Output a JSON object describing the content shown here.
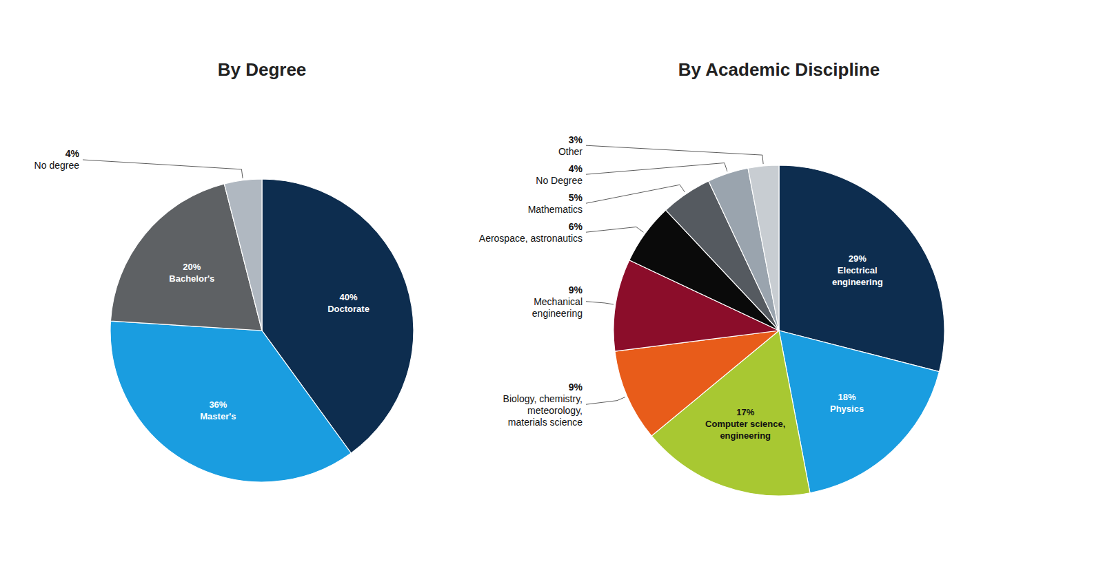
{
  "chart_data": [
    {
      "type": "pie",
      "title": "By Degree",
      "categories": [
        "Doctorate",
        "Master's",
        "Bachelor's",
        "No degree"
      ],
      "values": [
        40,
        36,
        20,
        4
      ],
      "value_labels": [
        "40%",
        "36%",
        "20%",
        "4%"
      ],
      "colors": [
        "#0d2d4f",
        "#1a9de0",
        "#5e6164",
        "#b0b8c1"
      ],
      "data_labels": true
    },
    {
      "type": "pie",
      "title": "By Academic Discipline",
      "categories": [
        "Electrical\nengineering",
        "Physics",
        "Computer science,\nengineering",
        "Biology, chemistry,\nmeteorology,\nmaterials science",
        "Mechanical\nengineering",
        "Aerospace, astronautics",
        "Mathematics",
        "No Degree",
        "Other"
      ],
      "values": [
        29,
        18,
        17,
        9,
        9,
        6,
        5,
        4,
        3
      ],
      "value_labels": [
        "29%",
        "18%",
        "17%",
        "9%",
        "9%",
        "6%",
        "5%",
        "4%",
        "3%"
      ],
      "colors": [
        "#0d2d4f",
        "#1a9de0",
        "#a8c832",
        "#e85c1a",
        "#8b0d2a",
        "#0a0a0a",
        "#555a60",
        "#9aa4ae",
        "#c8cdd2"
      ],
      "data_labels": true
    }
  ]
}
